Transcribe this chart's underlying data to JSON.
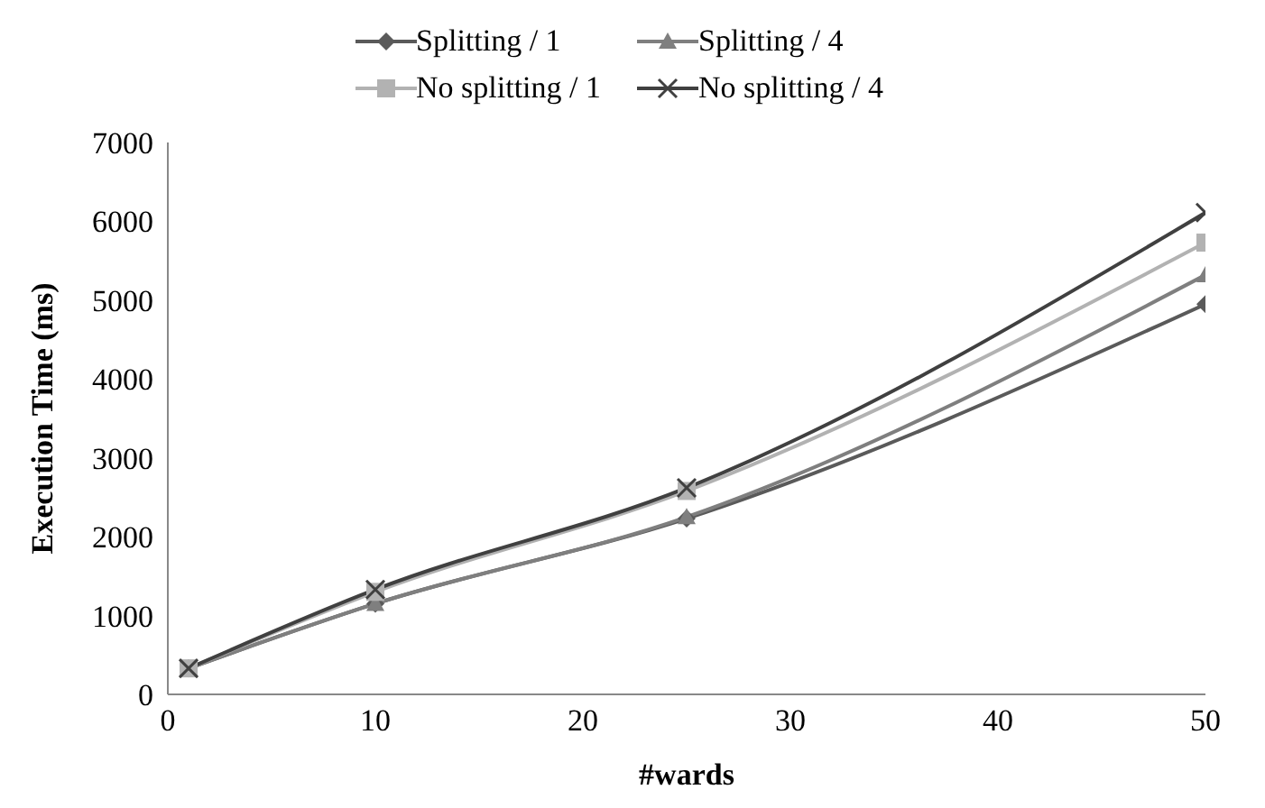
{
  "chart_data": {
    "type": "line",
    "xlabel": "#wards",
    "ylabel": "Execution Time (ms)",
    "x": [
      1,
      10,
      25,
      50
    ],
    "series": [
      {
        "name": "Splitting / 1",
        "color": "#5a5a5a",
        "marker": "diamond",
        "values": [
          330,
          1150,
          2230,
          4950
        ]
      },
      {
        "name": "Splitting / 4",
        "color": "#7f7f7f",
        "marker": "triangle",
        "values": [
          330,
          1150,
          2250,
          5320
        ]
      },
      {
        "name": "No splitting / 1",
        "color": "#b2b2b2",
        "marker": "square",
        "values": [
          330,
          1300,
          2580,
          5730
        ]
      },
      {
        "name": "No splitting / 4",
        "color": "#404040",
        "marker": "cross",
        "values": [
          330,
          1330,
          2620,
          6110
        ]
      }
    ],
    "xlim": [
      0,
      50
    ],
    "xticks": [
      0,
      10,
      20,
      30,
      40,
      50
    ],
    "ylim": [
      0,
      7000
    ],
    "yticks": [
      0,
      1000,
      2000,
      3000,
      4000,
      5000,
      6000,
      7000
    ],
    "legend": "top",
    "line_style": "solid"
  }
}
